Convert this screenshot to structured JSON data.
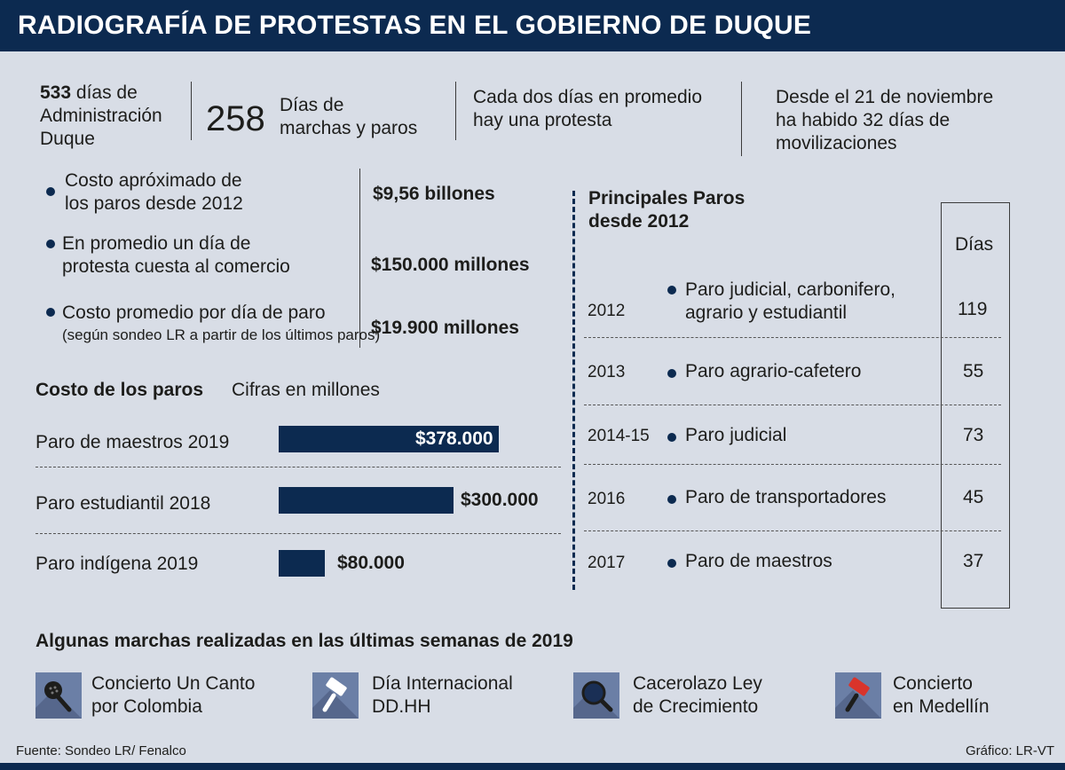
{
  "header": {
    "title": "RADIOGRAFÍA DE PROTESTAS EN EL GOBIERNO DE DUQUE"
  },
  "stats": {
    "admin_number": "533",
    "admin_text_1": "días de",
    "admin_text_2": "Administración",
    "admin_text_3": "Duque",
    "marches_number": "258",
    "marches_text_1": "Días de",
    "marches_text_2": "marchas y paros",
    "every_two_1": "Cada dos días en promedio",
    "every_two_2": "hay una protesta",
    "since_1": "Desde el 21 de noviembre",
    "since_2": "ha habido 32 días de",
    "since_3": "movilizaciones"
  },
  "costs": [
    {
      "label_1": "Costo apróximado de",
      "label_2": "los paros desde 2012",
      "value": "$9,56 billones"
    },
    {
      "label_1": "En promedio un día de",
      "label_2": "protesta cuesta al comercio",
      "value": "$150.000 millones"
    },
    {
      "label_1": "Costo promedio por día de paro",
      "label_2": "(según sondeo LR a partir de los últimos paros)",
      "value": "$19.900 millones"
    }
  ],
  "chart_data": {
    "type": "bar",
    "title": "Costo de los paros",
    "subtitle": "Cifras en millones",
    "categories": [
      "Paro de maestros 2019",
      "Paro estudiantil 2018",
      "Paro indígena 2019"
    ],
    "values": [
      378000,
      300000,
      80000
    ],
    "value_labels": [
      "$378.000",
      "$300.000",
      "$80.000"
    ],
    "color": "#0c2a50"
  },
  "strikes": {
    "title_1": "Principales Paros",
    "title_2": "desde 2012",
    "days_header": "Días",
    "rows": [
      {
        "year": "2012",
        "name_1": "Paro judicial, carbonifero,",
        "name_2": "agrario y estudiantil",
        "days": "119"
      },
      {
        "year": "2013",
        "name_1": "Paro agrario-cafetero",
        "name_2": "",
        "days": "55"
      },
      {
        "year": "2014-15",
        "name_1": "Paro judicial",
        "name_2": "",
        "days": "73"
      },
      {
        "year": "2016",
        "name_1": "Paro de transportadores",
        "name_2": "",
        "days": "45"
      },
      {
        "year": "2017",
        "name_1": "Paro de maestros",
        "name_2": "",
        "days": "37"
      }
    ]
  },
  "marches": {
    "title": "Algunas marchas realizadas en las últimas semanas de 2019",
    "items": [
      {
        "icon": "microphone-icon",
        "label_1": "Concierto Un Canto",
        "label_2": "por Colombia"
      },
      {
        "icon": "gavel-icon",
        "label_1": "Día Internacional",
        "label_2": "DD.HH"
      },
      {
        "icon": "magnifier-icon",
        "label_1": "Cacerolazo Ley",
        "label_2": "de Crecimiento"
      },
      {
        "icon": "hammer-icon",
        "label_1": "Concierto",
        "label_2": "en Medellín"
      }
    ]
  },
  "footer": {
    "source": "Fuente: Sondeo LR/ Fenalco",
    "credit": "Gráfico: LR-VT"
  }
}
